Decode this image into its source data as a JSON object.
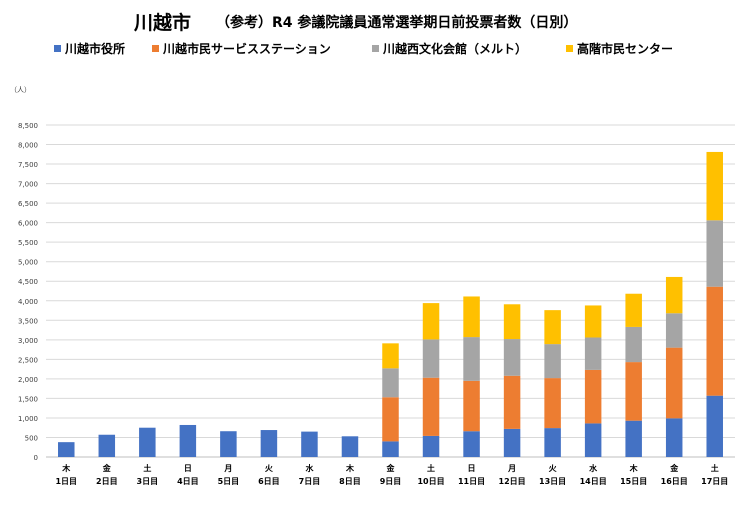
{
  "header": {
    "title": "川越市",
    "subtitle": "（参考）R4 参議院議員通常選挙期日前投票者数（日別）"
  },
  "colors": {
    "grid": "#d9d9d9",
    "axis": "#bfbfbf"
  },
  "chart_data": {
    "type": "bar",
    "stacked": true,
    "unit_label": "（人）",
    "ylim": [
      0,
      8500
    ],
    "ytick_step": 500,
    "grid": true,
    "legend_position": "top",
    "categories": [
      {
        "weekday": "木",
        "day": "1日目"
      },
      {
        "weekday": "金",
        "day": "2日目"
      },
      {
        "weekday": "土",
        "day": "3日目"
      },
      {
        "weekday": "日",
        "day": "4日目"
      },
      {
        "weekday": "月",
        "day": "5日目"
      },
      {
        "weekday": "火",
        "day": "6日目"
      },
      {
        "weekday": "水",
        "day": "7日目"
      },
      {
        "weekday": "木",
        "day": "8日目"
      },
      {
        "weekday": "金",
        "day": "9日目"
      },
      {
        "weekday": "土",
        "day": "10日目"
      },
      {
        "weekday": "日",
        "day": "11日目"
      },
      {
        "weekday": "月",
        "day": "12日目"
      },
      {
        "weekday": "火",
        "day": "13日目"
      },
      {
        "weekday": "水",
        "day": "14日目"
      },
      {
        "weekday": "木",
        "day": "15日目"
      },
      {
        "weekday": "金",
        "day": "16日目"
      },
      {
        "weekday": "土",
        "day": "17日目"
      }
    ],
    "series": [
      {
        "name": "川越市役所",
        "color": "#4472c4",
        "values": [
          380,
          570,
          750,
          820,
          660,
          690,
          650,
          530,
          400,
          540,
          660,
          720,
          740,
          860,
          930,
          990,
          1570
        ]
      },
      {
        "name": "川越市民サービスステーション",
        "color": "#ed7d31",
        "values": [
          0,
          0,
          0,
          0,
          0,
          0,
          0,
          0,
          1130,
          1490,
          1290,
          1360,
          1280,
          1370,
          1500,
          1810,
          2790
        ]
      },
      {
        "name": "川越西文化会館（メルト）",
        "color": "#a5a5a5",
        "values": [
          0,
          0,
          0,
          0,
          0,
          0,
          0,
          0,
          740,
          980,
          1120,
          940,
          870,
          830,
          900,
          880,
          1700
        ]
      },
      {
        "name": "高階市民センター",
        "color": "#ffc000",
        "values": [
          0,
          0,
          0,
          0,
          0,
          0,
          0,
          0,
          640,
          930,
          1040,
          890,
          870,
          820,
          850,
          930,
          1750
        ]
      }
    ]
  }
}
